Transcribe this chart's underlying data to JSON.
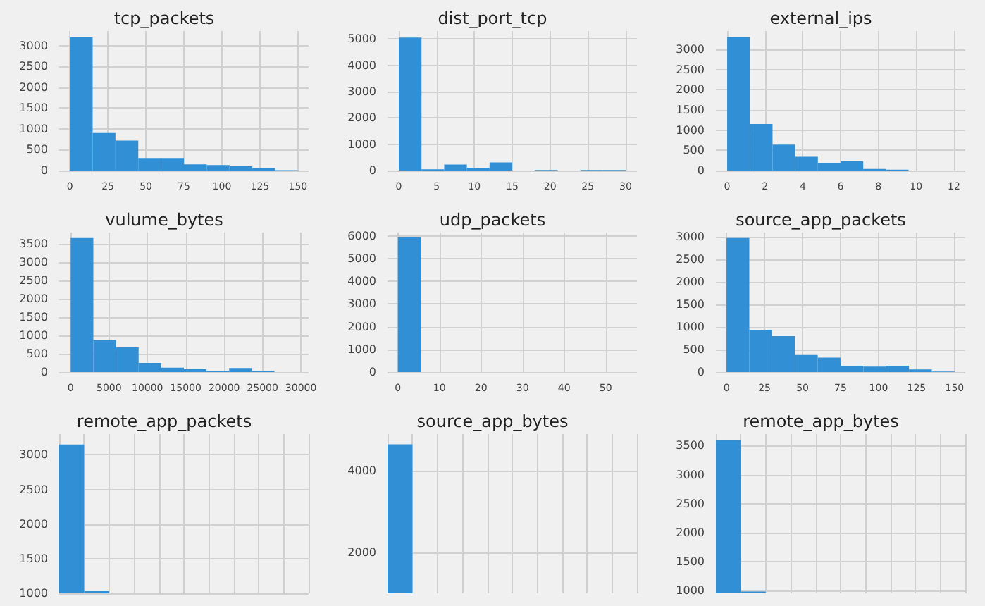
{
  "chart_data": [
    {
      "type": "histogram",
      "title": "tcp_packets",
      "color": "#318fd5",
      "grid": true,
      "bins": [
        0,
        15,
        30,
        45,
        60,
        75,
        90,
        105,
        120,
        135,
        150
      ],
      "values": [
        3200,
        900,
        720,
        300,
        300,
        150,
        130,
        100,
        60,
        10
      ],
      "xlim": [
        -7,
        157
      ],
      "xticks": [
        0,
        25,
        50,
        75,
        100,
        125,
        150
      ],
      "ylim": [
        0,
        3350
      ],
      "yticks": [
        0,
        500,
        1000,
        1500,
        2000,
        2500,
        3000
      ]
    },
    {
      "type": "histogram",
      "title": "dist_port_tcp",
      "color": "#318fd5",
      "grid": true,
      "bins": [
        0,
        3,
        6,
        9,
        12,
        15,
        18,
        21,
        24,
        27,
        30
      ],
      "values": [
        5050,
        50,
        230,
        110,
        310,
        0,
        20,
        0,
        20,
        20
      ],
      "xlim": [
        -1.5,
        31.5
      ],
      "xticks": [
        0,
        5,
        10,
        15,
        20,
        25,
        30
      ],
      "ylim": [
        0,
        5300
      ],
      "yticks": [
        0,
        1000,
        2000,
        3000,
        4000,
        5000
      ]
    },
    {
      "type": "histogram",
      "title": "external_ips",
      "color": "#318fd5",
      "grid": true,
      "bins": [
        0,
        1.2,
        2.4,
        3.6,
        4.8,
        6,
        7.2,
        8.4,
        9.6,
        10.8,
        12
      ],
      "values": [
        3300,
        1150,
        640,
        340,
        180,
        230,
        40,
        20,
        0,
        0
      ],
      "xlim": [
        -0.6,
        12.6
      ],
      "xticks": [
        0,
        2,
        4,
        6,
        8,
        10,
        12
      ],
      "ylim": [
        0,
        3450
      ],
      "yticks": [
        0,
        500,
        1000,
        1500,
        2000,
        2500,
        3000
      ]
    },
    {
      "type": "histogram",
      "title": "vulume_bytes",
      "color": "#318fd5",
      "grid": true,
      "bins": [
        0,
        2950,
        5900,
        8850,
        11800,
        14750,
        17700,
        20650,
        23600,
        26550,
        29500
      ],
      "values": [
        3650,
        870,
        670,
        250,
        120,
        80,
        30,
        110,
        30,
        0
      ],
      "xlim": [
        -1500,
        31000
      ],
      "xticks": [
        0,
        5000,
        10000,
        15000,
        20000,
        25000,
        30000
      ],
      "ylim": [
        0,
        3800
      ],
      "yticks": [
        0,
        500,
        1000,
        1500,
        2000,
        2500,
        3000,
        3500
      ]
    },
    {
      "type": "histogram",
      "title": "udp_packets",
      "color": "#318fd5",
      "grid": true,
      "bins": [
        0,
        5.5,
        11,
        16.5,
        22,
        27.5,
        33,
        38.5,
        44,
        49.5,
        55
      ],
      "values": [
        5950,
        0,
        0,
        0,
        0,
        0,
        0,
        0,
        0,
        0
      ],
      "xlim": [
        -2.5,
        57.5
      ],
      "xticks": [
        0,
        10,
        20,
        30,
        40,
        50
      ],
      "ylim": [
        0,
        6150
      ],
      "yticks": [
        0,
        1000,
        2000,
        3000,
        4000,
        5000,
        6000
      ]
    },
    {
      "type": "histogram",
      "title": "source_app_packets",
      "color": "#318fd5",
      "grid": true,
      "bins": [
        0,
        15,
        30,
        45,
        60,
        75,
        90,
        105,
        120,
        135,
        150
      ],
      "values": [
        2980,
        940,
        800,
        380,
        320,
        140,
        120,
        140,
        60,
        10
      ],
      "xlim": [
        -7,
        157
      ],
      "xticks": [
        0,
        25,
        50,
        75,
        100,
        125,
        150
      ],
      "ylim": [
        0,
        3100
      ],
      "yticks": [
        0,
        500,
        1000,
        1500,
        2000,
        2500,
        3000
      ]
    },
    {
      "type": "bar",
      "title": "remote_app_packets",
      "color": "#318fd5",
      "grid": true,
      "tick_labels": "y",
      "categories": [
        null,
        null,
        null,
        null,
        null,
        null,
        null,
        null,
        null,
        null
      ],
      "values": [
        3150,
        1030,
        null,
        null,
        null,
        null,
        null,
        null,
        null,
        null
      ],
      "ylim": [
        1000,
        3300
      ],
      "yticks": [
        1000,
        1500,
        2000,
        2500,
        3000
      ]
    },
    {
      "type": "bar",
      "title": "source_app_bytes",
      "color": "#318fd5",
      "grid": true,
      "tick_labels": "y",
      "categories": [
        null,
        null,
        null,
        null,
        null,
        null,
        null,
        null,
        null,
        null
      ],
      "values": [
        4650,
        null,
        null,
        null,
        null,
        null,
        null,
        null,
        null,
        null
      ],
      "ylim": [
        1000,
        4900
      ],
      "yticks": [
        2000,
        4000
      ]
    },
    {
      "type": "bar",
      "title": "remote_app_bytes",
      "color": "#318fd5",
      "grid": true,
      "tick_labels": "y",
      "categories": [
        null,
        null,
        null,
        null,
        null,
        null,
        null,
        null,
        null,
        null
      ],
      "values": [
        3600,
        980,
        null,
        null,
        null,
        null,
        null,
        null,
        null,
        null
      ],
      "ylim": [
        950,
        3700
      ],
      "yticks": [
        1000,
        1500,
        2000,
        2500,
        3000,
        3500
      ]
    }
  ]
}
